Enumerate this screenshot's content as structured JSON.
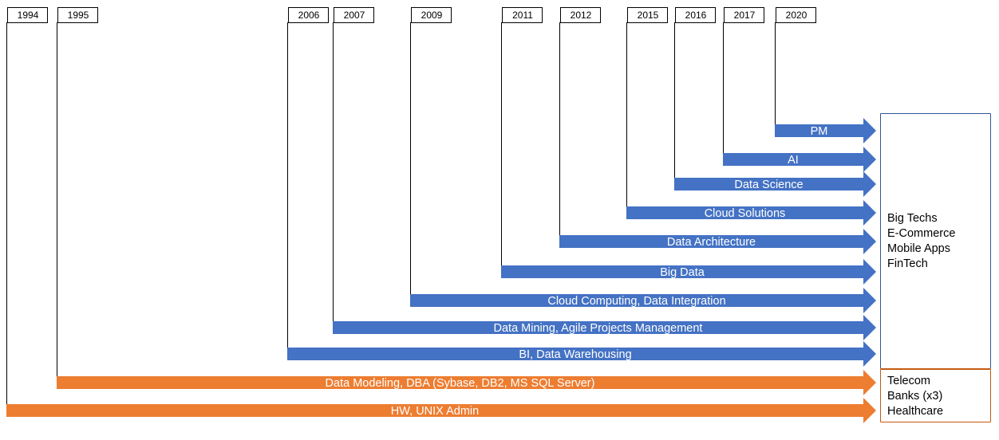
{
  "colors": {
    "blue": "#4472C4",
    "orange": "#ED7D31",
    "line": "#000000",
    "box_top_border": "#2E5597",
    "box_bottom_border": "#C55A11"
  },
  "tracks": [
    {
      "year": "1994",
      "label": "HW, UNIX Admin",
      "color": "orange"
    },
    {
      "year": "1995",
      "label": "Data Modeling, DBA (Sybase, DB2, MS SQL Server)",
      "color": "orange"
    },
    {
      "year": "2006",
      "label": "BI, Data Warehousing",
      "color": "blue"
    },
    {
      "year": "2007",
      "label": "Data Mining, Agile Projects Management",
      "color": "blue"
    },
    {
      "year": "2009",
      "label": "Cloud Computing, Data Integration",
      "color": "blue"
    },
    {
      "year": "2011",
      "label": "Big Data",
      "color": "blue"
    },
    {
      "year": "2012",
      "label": "Data Architecture",
      "color": "blue"
    },
    {
      "year": "2015",
      "label": "Cloud Solutions",
      "color": "blue"
    },
    {
      "year": "2016",
      "label": "Data Science",
      "color": "blue"
    },
    {
      "year": "2017",
      "label": "AI",
      "color": "blue"
    },
    {
      "year": "2020",
      "label": "PM",
      "color": "blue"
    }
  ],
  "industries_recent": [
    "Big Techs",
    "E-Commerce",
    "Mobile Apps",
    "FinTech"
  ],
  "industries_early": [
    "Telecom",
    "Banks (x3)",
    "Healthcare"
  ]
}
